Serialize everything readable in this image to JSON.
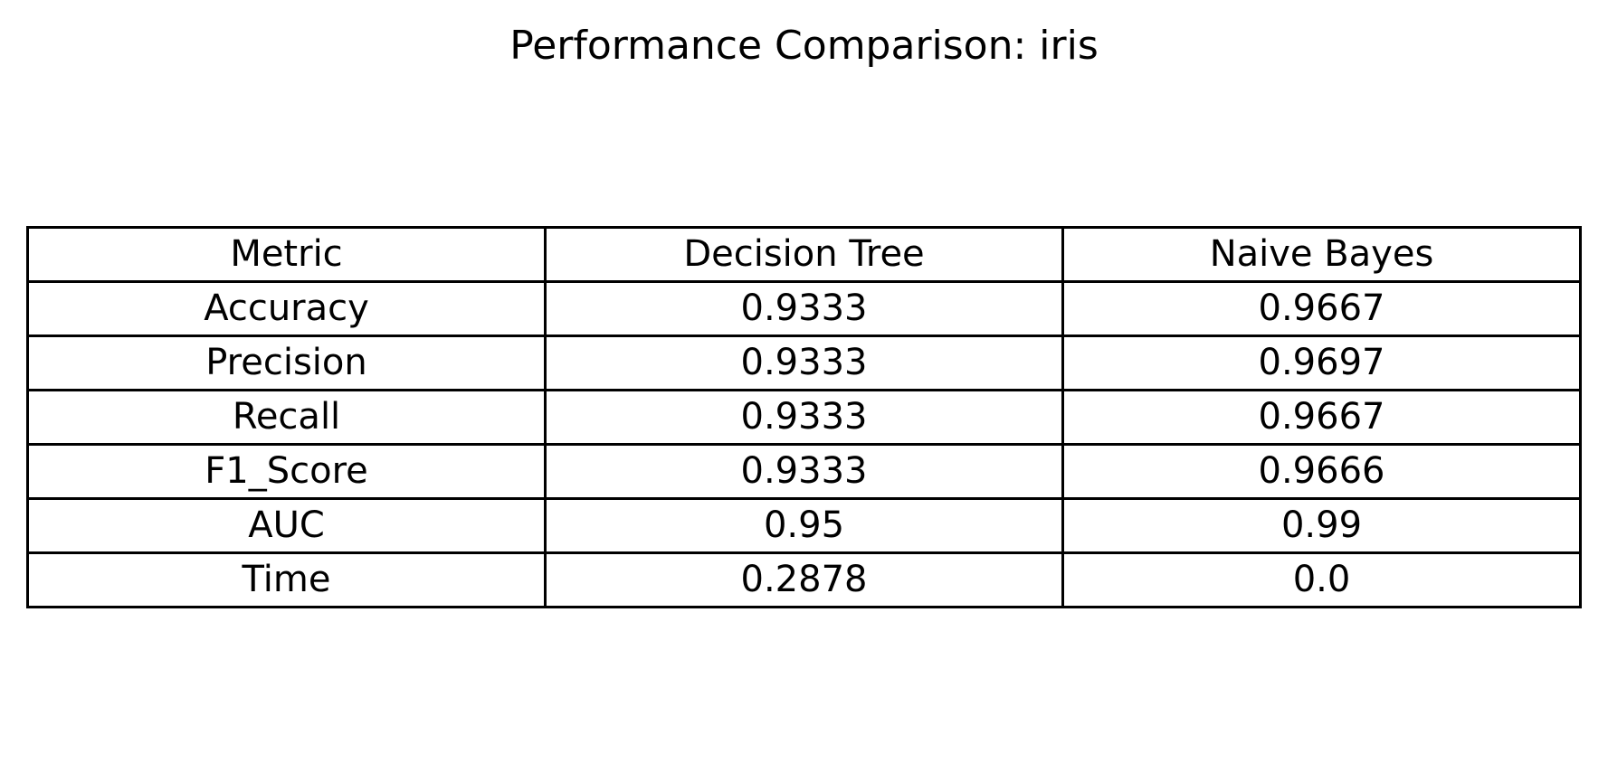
{
  "chart_data": {
    "type": "table",
    "title": "Performance Comparison: iris",
    "columns": [
      "Metric",
      "Decision Tree",
      "Naive Bayes"
    ],
    "rows": [
      [
        "Accuracy",
        "0.9333",
        "0.9667"
      ],
      [
        "Precision",
        "0.9333",
        "0.9697"
      ],
      [
        "Recall",
        "0.9333",
        "0.9667"
      ],
      [
        "F1_Score",
        "0.9333",
        "0.9666"
      ],
      [
        "AUC",
        "0.95",
        "0.99"
      ],
      [
        "Time",
        "0.2878",
        "0.0"
      ]
    ],
    "grid": true
  },
  "colors": {
    "text": "#000000",
    "border": "#000000",
    "background": "#ffffff"
  }
}
